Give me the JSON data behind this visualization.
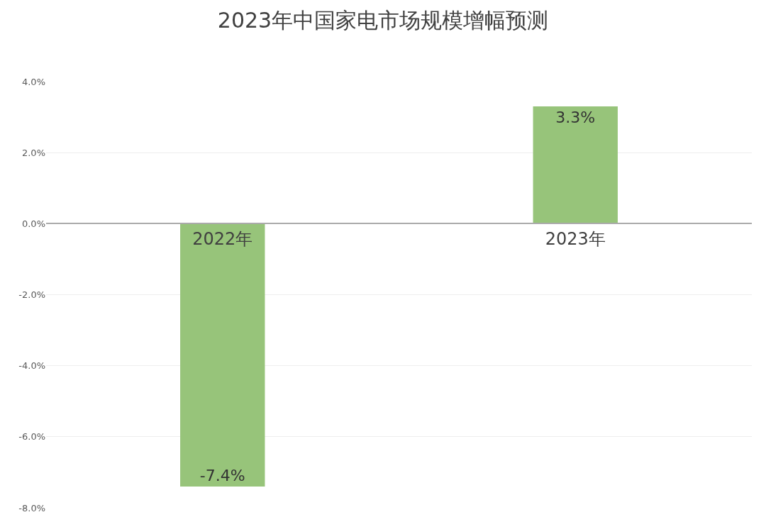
{
  "chart_data": {
    "type": "bar",
    "title": "2023年中国家电市场规模增幅预测",
    "categories": [
      "2022年",
      "2023年"
    ],
    "series": [
      {
        "color": "#97c47a",
        "values": [
          -7.4,
          3.3
        ],
        "value_labels": [
          "-7.4%",
          "3.3%"
        ]
      }
    ],
    "ylim": [
      -8,
      4
    ],
    "yticks": [
      {
        "value": -8,
        "label": "-8.0%"
      },
      {
        "value": -6,
        "label": "-6.0%"
      },
      {
        "value": -4,
        "label": "-4.0%"
      },
      {
        "value": -2,
        "label": "-2.0%"
      },
      {
        "value": 0,
        "label": "0.0%"
      },
      {
        "value": 2,
        "label": "2.0%"
      },
      {
        "value": 4,
        "label": "4.0%"
      }
    ],
    "grid": "y"
  }
}
